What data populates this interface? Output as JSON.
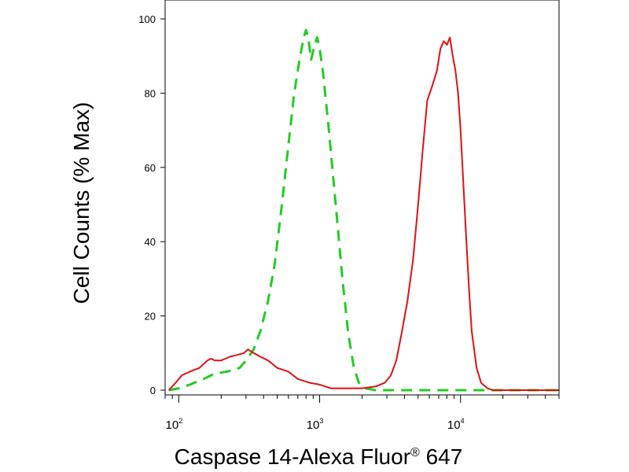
{
  "chart_data": {
    "type": "line",
    "title": "",
    "xlabel": "Caspase 14-Alexa Fluor® 647",
    "ylabel": "Cell Counts (% Max)",
    "x_scale": "log",
    "xlim": [
      80,
      50000
    ],
    "ylim": [
      -1,
      101
    ],
    "grid": false,
    "legend": "none",
    "y_ticks": [
      0,
      20,
      40,
      60,
      80,
      100
    ],
    "x_ticks": [
      {
        "value": 100,
        "base": "10",
        "exp": "2"
      },
      {
        "value": 1000,
        "base": "10",
        "exp": "3"
      },
      {
        "value": 10000,
        "base": "10",
        "exp": "4"
      }
    ],
    "series": [
      {
        "color": "#22cc22",
        "dash": "dashed",
        "x": [
          85,
          100,
          120,
          150,
          180,
          220,
          270,
          300,
          340,
          380,
          430,
          480,
          540,
          600,
          660,
          720,
          770,
          800,
          830,
          870,
          920,
          960,
          1000,
          1060,
          1150,
          1300,
          1450,
          1600,
          1750,
          1900,
          2100,
          2500,
          3500,
          5000,
          7000,
          9000,
          12000,
          16000,
          20000,
          30000,
          50000
        ],
        "y": [
          0,
          0.5,
          1.5,
          3,
          4.5,
          5,
          6,
          8,
          11,
          16,
          24,
          34,
          50,
          66,
          80,
          89,
          95,
          97,
          95,
          89,
          93,
          95,
          92,
          85,
          72,
          50,
          30,
          15,
          6,
          2,
          0.5,
          0,
          0,
          0,
          0,
          0,
          0,
          0,
          0,
          0,
          0
        ]
      },
      {
        "color": "#dd1111",
        "dash": "solid",
        "x": [
          85,
          95,
          105,
          120,
          140,
          160,
          170,
          180,
          200,
          230,
          260,
          290,
          310,
          340,
          380,
          430,
          500,
          600,
          700,
          850,
          1000,
          1200,
          1500,
          2000,
          2500,
          2900,
          3200,
          3500,
          3800,
          4200,
          4600,
          5000,
          5400,
          5800,
          6300,
          6800,
          7200,
          7600,
          8000,
          8400,
          8800,
          9200,
          9600,
          10000,
          10500,
          11000,
          11500,
          12000,
          13000,
          14000,
          15500,
          17000,
          20000,
          30000,
          50000
        ],
        "y": [
          0,
          2,
          4,
          5,
          6,
          8,
          8.5,
          8,
          8,
          9,
          9.5,
          10,
          11,
          10,
          9,
          8,
          6,
          5,
          3,
          2,
          1.5,
          0.5,
          0.5,
          0.5,
          1,
          2,
          4,
          8,
          15,
          24,
          35,
          50,
          65,
          78,
          82,
          86,
          92,
          94,
          93,
          95,
          90,
          86,
          80,
          70,
          55,
          40,
          27,
          16,
          6,
          2,
          0.5,
          0,
          0,
          0,
          0
        ]
      }
    ]
  }
}
